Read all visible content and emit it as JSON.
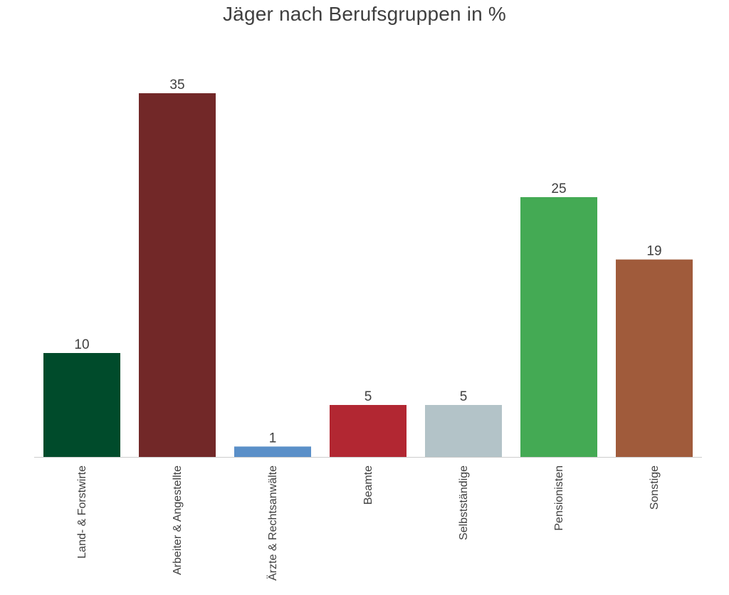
{
  "chart_data": {
    "type": "bar",
    "title": "Jäger nach Berufsgruppen in %",
    "categories": [
      "Land- & Forstwirte",
      "Arbeiter & Angestellte",
      "Ärzte & Rechtsanwälte",
      "Beamte",
      "Selbstständige",
      "Pensionisten",
      "Sonstige"
    ],
    "values": [
      10,
      35,
      1,
      5,
      5,
      25,
      19
    ],
    "colors": [
      "#004b2b",
      "#722828",
      "#5a8fc8",
      "#b22732",
      "#b3c3c8",
      "#44aa54",
      "#a05b3b"
    ],
    "axis_color": "#cccccc",
    "ylim": [
      0,
      35
    ],
    "grid": false,
    "xlabel": "",
    "ylabel": ""
  }
}
